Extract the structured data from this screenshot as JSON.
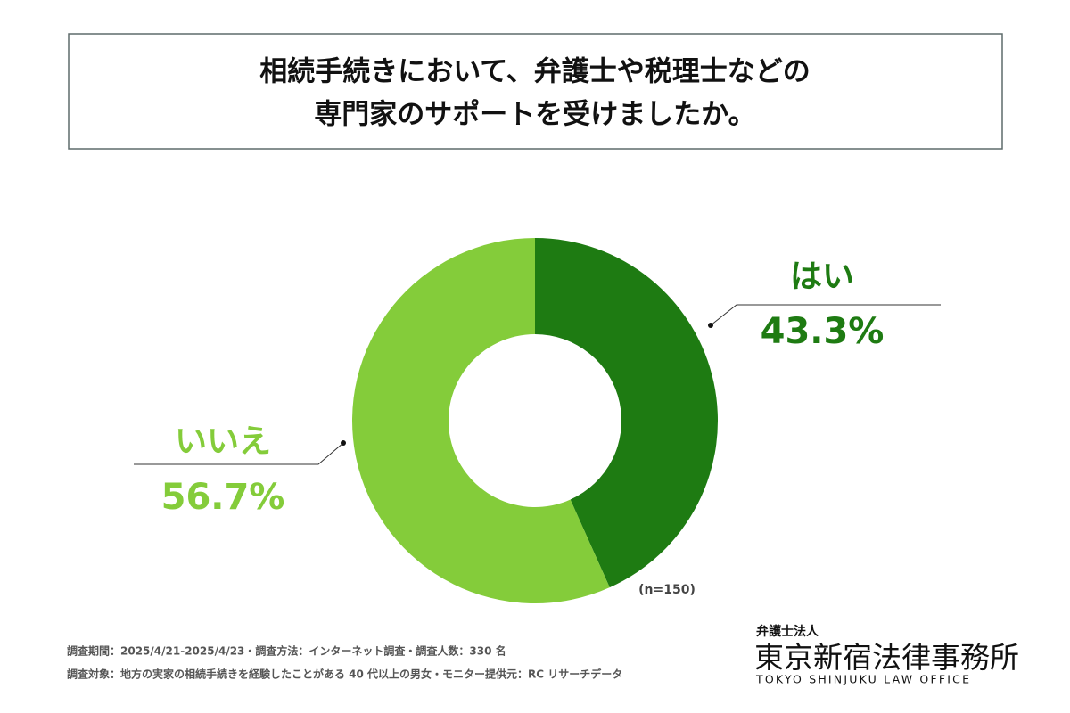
{
  "chart_data": {
    "type": "donut",
    "title": [
      "相続手続きにおいて、弁護士や税理士などの",
      "専門家のサポートを受けましたか。"
    ],
    "categories": [
      "はい",
      "いいえ"
    ],
    "values": [
      43.3,
      56.7
    ],
    "value_labels": [
      "43.3%",
      "56.7%"
    ],
    "colors": [
      "#1e7b12",
      "#84cc3a"
    ],
    "annotation": "(n=150)"
  },
  "footer": {
    "notes": [
      "調査期間：2025/4/21-2025/4/23・調査方法：インターネット調査・調査人数：330 名",
      "調査対象：地方の実家の相続手続きを経験したことがある 40 代以上の男女・モニター提供元：RC リサーチデータ"
    ],
    "logo": {
      "top": "弁護士法人",
      "name": "東京新宿法律事務所",
      "english": "TOKYO SHINJUKU LAW OFFICE"
    }
  }
}
